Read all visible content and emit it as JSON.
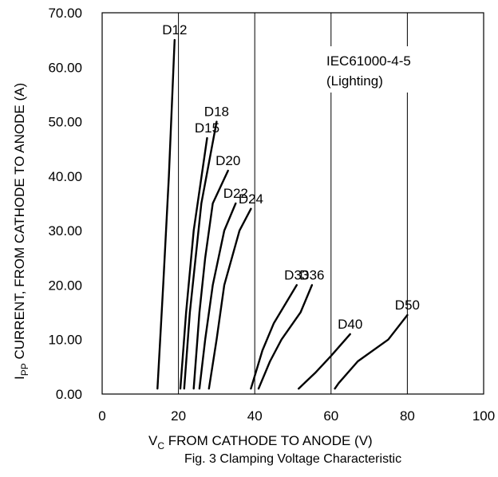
{
  "chart_data": {
    "type": "line",
    "xlabel_main": "V",
    "xlabel_sub": "C",
    "xlabel_rest": " FROM CATHODE TO ANODE (V)",
    "ylabel_main": "I",
    "ylabel_sub": "PP",
    "ylabel_rest": " CURRENT, FROM CATHODE TO ANODE (A)",
    "caption": "Fig. 3 Clamping Voltage Characteristic",
    "annotation_line1": "IEC61000-4-5",
    "annotation_line2": "(Lighting)",
    "xlim": [
      0,
      100
    ],
    "ylim": [
      0,
      70
    ],
    "x_ticks": [
      "0",
      "20",
      "40",
      "60",
      "80",
      "100"
    ],
    "y_ticks": [
      "0.00",
      "10.00",
      "20.00",
      "30.00",
      "40.00",
      "50.00",
      "60.00",
      "70.00"
    ],
    "grid": "vertical",
    "line_color": "#000000",
    "series": [
      {
        "label": "D12",
        "points": [
          [
            14.5,
            1
          ],
          [
            16,
            20
          ],
          [
            17.5,
            40
          ],
          [
            19,
            65
          ]
        ]
      },
      {
        "label": "D15",
        "points": [
          [
            20.5,
            1
          ],
          [
            22,
            15
          ],
          [
            24,
            30
          ],
          [
            27.5,
            47
          ]
        ]
      },
      {
        "label": "D18",
        "points": [
          [
            21.5,
            1
          ],
          [
            23,
            15
          ],
          [
            24.5,
            25
          ],
          [
            26,
            35
          ],
          [
            30,
            50
          ]
        ]
      },
      {
        "label": "D20",
        "points": [
          [
            24,
            1
          ],
          [
            25.5,
            15
          ],
          [
            27,
            25
          ],
          [
            29,
            35
          ],
          [
            33,
            41
          ]
        ]
      },
      {
        "label": "D22",
        "points": [
          [
            25.5,
            1
          ],
          [
            27,
            10
          ],
          [
            29,
            20
          ],
          [
            32,
            30
          ],
          [
            35,
            35
          ]
        ]
      },
      {
        "label": "D24",
        "points": [
          [
            28,
            1
          ],
          [
            30,
            10
          ],
          [
            32,
            20
          ],
          [
            36,
            30
          ],
          [
            39,
            34
          ]
        ]
      },
      {
        "label": "D33",
        "points": [
          [
            39,
            1
          ],
          [
            42,
            8
          ],
          [
            45,
            13
          ],
          [
            51,
            20
          ]
        ]
      },
      {
        "label": "D36",
        "points": [
          [
            41,
            1
          ],
          [
            44,
            6
          ],
          [
            47,
            10
          ],
          [
            52,
            15
          ],
          [
            55,
            20
          ]
        ]
      },
      {
        "label": "D40",
        "points": [
          [
            51.5,
            1
          ],
          [
            56,
            4
          ],
          [
            60,
            7
          ],
          [
            65,
            11
          ]
        ]
      },
      {
        "label": "D50",
        "points": [
          [
            61,
            1
          ],
          [
            62,
            2
          ],
          [
            67,
            6
          ],
          [
            75,
            10
          ],
          [
            80,
            14.5
          ]
        ]
      }
    ]
  }
}
